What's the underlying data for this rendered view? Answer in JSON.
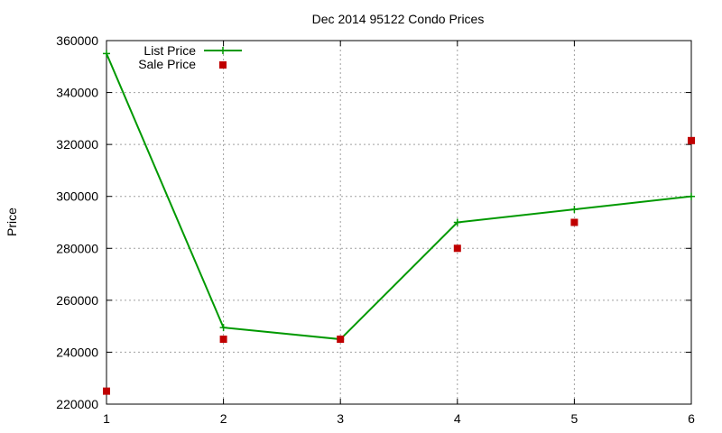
{
  "chart_data": {
    "type": "line",
    "title": "Dec 2014 95122 Condo Prices",
    "xlabel": "",
    "ylabel": "Price",
    "x": [
      1,
      2,
      3,
      4,
      5,
      6
    ],
    "xlim": [
      1,
      6
    ],
    "ylim": [
      220000,
      360000
    ],
    "xticks": [
      "1",
      "2",
      "3",
      "4",
      "5",
      "6"
    ],
    "yticks": [
      "220000",
      "240000",
      "260000",
      "280000",
      "300000",
      "320000",
      "340000",
      "360000"
    ],
    "grid": true,
    "legend_position": "top-left",
    "series": [
      {
        "name": "List Price",
        "style": "line-with-plus-markers",
        "color": "#009900",
        "values": [
          355000,
          249500,
          245000,
          290000,
          295000,
          300000
        ]
      },
      {
        "name": "Sale Price",
        "style": "square-points",
        "color": "#c00000",
        "values": [
          225000,
          245000,
          245000,
          280000,
          290000,
          321500
        ]
      }
    ]
  }
}
